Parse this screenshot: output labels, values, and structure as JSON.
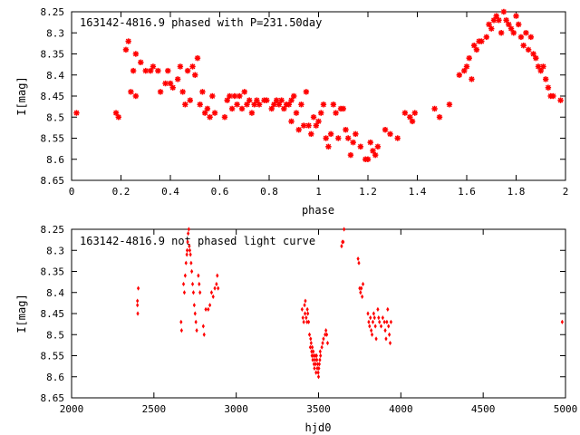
{
  "chart_data": [
    {
      "type": "scatter",
      "title": "163142-4816.9 phased with P=231.50day",
      "xlabel": "phase",
      "ylabel": "I[mag]",
      "xlim": [
        0,
        2
      ],
      "ylim": [
        8.25,
        8.65
      ],
      "y_inverted": true,
      "grid": false,
      "marker_color": "#ff0000",
      "marker": "star",
      "x_ticks": [
        "0",
        "0.2",
        "0.4",
        "0.6",
        "0.8",
        "1",
        "1.2",
        "1.4",
        "1.6",
        "1.8",
        "2"
      ],
      "y_ticks": [
        "8.25",
        "8.3",
        "8.35",
        "8.4",
        "8.45",
        "8.5",
        "8.55",
        "8.6",
        "8.65"
      ],
      "points": [
        [
          0.02,
          8.49
        ],
        [
          0.18,
          8.49
        ],
        [
          0.19,
          8.5
        ],
        [
          0.22,
          8.34
        ],
        [
          0.23,
          8.32
        ],
        [
          0.24,
          8.44
        ],
        [
          0.25,
          8.39
        ],
        [
          0.26,
          8.45
        ],
        [
          0.26,
          8.35
        ],
        [
          0.28,
          8.37
        ],
        [
          0.3,
          8.39
        ],
        [
          0.32,
          8.39
        ],
        [
          0.33,
          8.38
        ],
        [
          0.35,
          8.39
        ],
        [
          0.36,
          8.44
        ],
        [
          0.38,
          8.42
        ],
        [
          0.39,
          8.39
        ],
        [
          0.4,
          8.42
        ],
        [
          0.41,
          8.43
        ],
        [
          0.43,
          8.41
        ],
        [
          0.44,
          8.38
        ],
        [
          0.45,
          8.44
        ],
        [
          0.46,
          8.47
        ],
        [
          0.47,
          8.39
        ],
        [
          0.48,
          8.46
        ],
        [
          0.49,
          8.38
        ],
        [
          0.5,
          8.4
        ],
        [
          0.51,
          8.36
        ],
        [
          0.52,
          8.47
        ],
        [
          0.53,
          8.44
        ],
        [
          0.54,
          8.49
        ],
        [
          0.55,
          8.48
        ],
        [
          0.56,
          8.5
        ],
        [
          0.57,
          8.45
        ],
        [
          0.58,
          8.49
        ],
        [
          0.62,
          8.5
        ],
        [
          0.63,
          8.46
        ],
        [
          0.64,
          8.45
        ],
        [
          0.65,
          8.48
        ],
        [
          0.66,
          8.45
        ],
        [
          0.67,
          8.47
        ],
        [
          0.68,
          8.45
        ],
        [
          0.69,
          8.48
        ],
        [
          0.7,
          8.44
        ],
        [
          0.71,
          8.47
        ],
        [
          0.72,
          8.46
        ],
        [
          0.73,
          8.49
        ],
        [
          0.74,
          8.47
        ],
        [
          0.75,
          8.46
        ],
        [
          0.76,
          8.47
        ],
        [
          0.78,
          8.46
        ],
        [
          0.79,
          8.46
        ],
        [
          0.81,
          8.48
        ],
        [
          0.82,
          8.47
        ],
        [
          0.83,
          8.46
        ],
        [
          0.84,
          8.47
        ],
        [
          0.85,
          8.46
        ],
        [
          0.86,
          8.48
        ],
        [
          0.87,
          8.47
        ],
        [
          0.88,
          8.47
        ],
        [
          0.89,
          8.51
        ],
        [
          0.89,
          8.46
        ],
        [
          0.9,
          8.45
        ],
        [
          0.91,
          8.49
        ],
        [
          0.92,
          8.53
        ],
        [
          0.93,
          8.47
        ],
        [
          0.94,
          8.52
        ],
        [
          0.95,
          8.44
        ],
        [
          0.96,
          8.52
        ],
        [
          0.97,
          8.54
        ],
        [
          0.98,
          8.5
        ],
        [
          0.99,
          8.52
        ],
        [
          1.0,
          8.51
        ],
        [
          1.01,
          8.49
        ],
        [
          1.02,
          8.47
        ],
        [
          1.03,
          8.55
        ],
        [
          1.04,
          8.57
        ],
        [
          1.05,
          8.54
        ],
        [
          1.06,
          8.47
        ],
        [
          1.07,
          8.49
        ],
        [
          1.08,
          8.55
        ],
        [
          1.09,
          8.48
        ],
        [
          1.1,
          8.48
        ],
        [
          1.11,
          8.53
        ],
        [
          1.12,
          8.55
        ],
        [
          1.13,
          8.59
        ],
        [
          1.14,
          8.56
        ],
        [
          1.15,
          8.54
        ],
        [
          1.17,
          8.57
        ],
        [
          1.19,
          8.6
        ],
        [
          1.2,
          8.6
        ],
        [
          1.21,
          8.56
        ],
        [
          1.22,
          8.58
        ],
        [
          1.23,
          8.59
        ],
        [
          1.24,
          8.57
        ],
        [
          1.27,
          8.53
        ],
        [
          1.29,
          8.54
        ],
        [
          1.32,
          8.55
        ],
        [
          1.35,
          8.49
        ],
        [
          1.37,
          8.5
        ],
        [
          1.38,
          8.51
        ],
        [
          1.39,
          8.49
        ],
        [
          1.47,
          8.48
        ],
        [
          1.49,
          8.5
        ],
        [
          1.53,
          8.47
        ],
        [
          1.57,
          8.4
        ],
        [
          1.59,
          8.39
        ],
        [
          1.6,
          8.38
        ],
        [
          1.61,
          8.36
        ],
        [
          1.62,
          8.41
        ],
        [
          1.63,
          8.33
        ],
        [
          1.64,
          8.34
        ],
        [
          1.65,
          8.32
        ],
        [
          1.66,
          8.32
        ],
        [
          1.68,
          8.31
        ],
        [
          1.69,
          8.28
        ],
        [
          1.7,
          8.29
        ],
        [
          1.71,
          8.27
        ],
        [
          1.72,
          8.26
        ],
        [
          1.73,
          8.27
        ],
        [
          1.74,
          8.3
        ],
        [
          1.75,
          8.25
        ],
        [
          1.76,
          8.27
        ],
        [
          1.77,
          8.28
        ],
        [
          1.78,
          8.29
        ],
        [
          1.79,
          8.3
        ],
        [
          1.8,
          8.26
        ],
        [
          1.81,
          8.28
        ],
        [
          1.82,
          8.31
        ],
        [
          1.83,
          8.33
        ],
        [
          1.84,
          8.3
        ],
        [
          1.85,
          8.34
        ],
        [
          1.86,
          8.31
        ],
        [
          1.87,
          8.35
        ],
        [
          1.88,
          8.36
        ],
        [
          1.89,
          8.38
        ],
        [
          1.9,
          8.39
        ],
        [
          1.91,
          8.38
        ],
        [
          1.92,
          8.41
        ],
        [
          1.93,
          8.43
        ],
        [
          1.94,
          8.45
        ],
        [
          1.95,
          8.45
        ],
        [
          1.98,
          8.46
        ]
      ]
    },
    {
      "type": "scatter",
      "title": "163142-4816.9 not phased light curve",
      "xlabel": "hjd0",
      "ylabel": "I[mag]",
      "xlim": [
        2000,
        5000
      ],
      "ylim": [
        8.25,
        8.65
      ],
      "y_inverted": true,
      "grid": false,
      "marker_color": "#ff0000",
      "marker": "diamond",
      "x_ticks": [
        "2000",
        "2500",
        "3000",
        "3500",
        "4000",
        "4500",
        "5000"
      ],
      "y_ticks": [
        "8.25",
        "8.3",
        "8.35",
        "8.4",
        "8.45",
        "8.5",
        "8.55",
        "8.6",
        "8.65"
      ],
      "points": [
        [
          2400,
          8.42
        ],
        [
          2400,
          8.43
        ],
        [
          2402,
          8.45
        ],
        [
          2405,
          8.39
        ],
        [
          2665,
          8.47
        ],
        [
          2668,
          8.49
        ],
        [
          2680,
          8.38
        ],
        [
          2685,
          8.4
        ],
        [
          2690,
          8.36
        ],
        [
          2695,
          8.33
        ],
        [
          2700,
          8.31
        ],
        [
          2702,
          8.3
        ],
        [
          2705,
          8.28
        ],
        [
          2708,
          8.26
        ],
        [
          2712,
          8.25
        ],
        [
          2715,
          8.29
        ],
        [
          2718,
          8.3
        ],
        [
          2722,
          8.31
        ],
        [
          2726,
          8.33
        ],
        [
          2730,
          8.35
        ],
        [
          2735,
          8.38
        ],
        [
          2740,
          8.4
        ],
        [
          2745,
          8.43
        ],
        [
          2750,
          8.45
        ],
        [
          2755,
          8.47
        ],
        [
          2760,
          8.49
        ],
        [
          2770,
          8.36
        ],
        [
          2775,
          8.38
        ],
        [
          2780,
          8.4
        ],
        [
          2800,
          8.48
        ],
        [
          2805,
          8.5
        ],
        [
          2815,
          8.44
        ],
        [
          2830,
          8.44
        ],
        [
          2840,
          8.43
        ],
        [
          2850,
          8.4
        ],
        [
          2860,
          8.41
        ],
        [
          2870,
          8.39
        ],
        [
          2880,
          8.38
        ],
        [
          2885,
          8.36
        ],
        [
          2890,
          8.39
        ],
        [
          3400,
          8.44
        ],
        [
          3405,
          8.46
        ],
        [
          3410,
          8.47
        ],
        [
          3415,
          8.43
        ],
        [
          3418,
          8.45
        ],
        [
          3420,
          8.42
        ],
        [
          3425,
          8.46
        ],
        [
          3430,
          8.47
        ],
        [
          3432,
          8.44
        ],
        [
          3435,
          8.45
        ],
        [
          3440,
          8.47
        ],
        [
          3445,
          8.5
        ],
        [
          3450,
          8.53
        ],
        [
          3452,
          8.51
        ],
        [
          3455,
          8.52
        ],
        [
          3458,
          8.54
        ],
        [
          3460,
          8.55
        ],
        [
          3462,
          8.53
        ],
        [
          3465,
          8.56
        ],
        [
          3468,
          8.54
        ],
        [
          3470,
          8.55
        ],
        [
          3472,
          8.57
        ],
        [
          3475,
          8.58
        ],
        [
          3478,
          8.56
        ],
        [
          3480,
          8.55
        ],
        [
          3482,
          8.57
        ],
        [
          3485,
          8.59
        ],
        [
          3488,
          8.55
        ],
        [
          3490,
          8.56
        ],
        [
          3492,
          8.58
        ],
        [
          3495,
          8.57
        ],
        [
          3498,
          8.59
        ],
        [
          3500,
          8.6
        ],
        [
          3502,
          8.58
        ],
        [
          3505,
          8.57
        ],
        [
          3508,
          8.56
        ],
        [
          3510,
          8.54
        ],
        [
          3512,
          8.55
        ],
        [
          3520,
          8.53
        ],
        [
          3525,
          8.52
        ],
        [
          3530,
          8.51
        ],
        [
          3540,
          8.5
        ],
        [
          3545,
          8.49
        ],
        [
          3550,
          8.5
        ],
        [
          3555,
          8.52
        ],
        [
          3640,
          8.29
        ],
        [
          3645,
          8.28
        ],
        [
          3650,
          8.28
        ],
        [
          3655,
          8.25
        ],
        [
          3740,
          8.32
        ],
        [
          3745,
          8.33
        ],
        [
          3750,
          8.39
        ],
        [
          3755,
          8.4
        ],
        [
          3760,
          8.39
        ],
        [
          3765,
          8.41
        ],
        [
          3770,
          8.38
        ],
        [
          3800,
          8.45
        ],
        [
          3805,
          8.47
        ],
        [
          3810,
          8.48
        ],
        [
          3815,
          8.46
        ],
        [
          3820,
          8.49
        ],
        [
          3825,
          8.5
        ],
        [
          3830,
          8.47
        ],
        [
          3835,
          8.45
        ],
        [
          3840,
          8.46
        ],
        [
          3845,
          8.48
        ],
        [
          3850,
          8.51
        ],
        [
          3860,
          8.44
        ],
        [
          3865,
          8.46
        ],
        [
          3870,
          8.47
        ],
        [
          3880,
          8.48
        ],
        [
          3890,
          8.46
        ],
        [
          3900,
          8.47
        ],
        [
          3905,
          8.49
        ],
        [
          3910,
          8.51
        ],
        [
          3915,
          8.47
        ],
        [
          3920,
          8.44
        ],
        [
          3925,
          8.48
        ],
        [
          3930,
          8.5
        ],
        [
          3935,
          8.52
        ],
        [
          3940,
          8.47
        ],
        [
          4980,
          8.47
        ]
      ]
    }
  ]
}
